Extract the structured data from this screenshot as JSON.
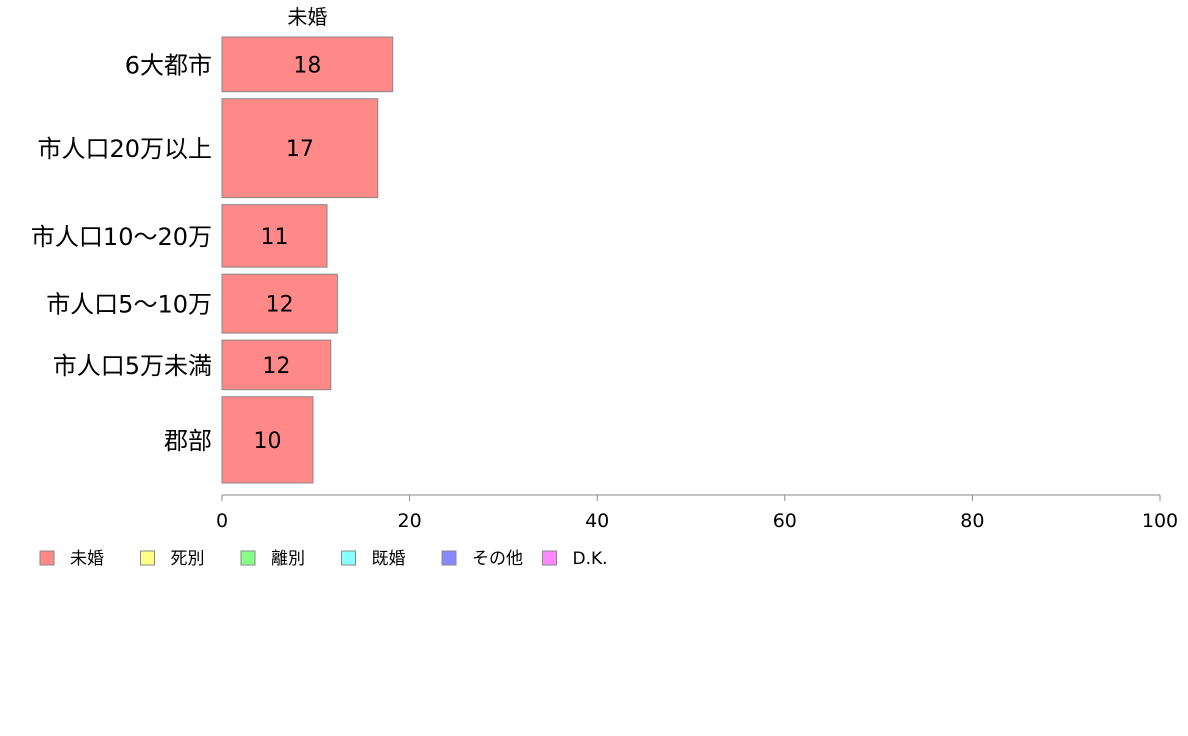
{
  "chart_data": {
    "type": "bar",
    "orientation": "horizontal",
    "stacked": true,
    "categories": [
      "6大都市",
      "市人口20万以上",
      "市人口10～20万",
      "市人口5～10万",
      "市人口5万未満",
      "郡部"
    ],
    "bar_weights": [
      18.2,
      32.9,
      20.8,
      19.6,
      16.5,
      28.7
    ],
    "series": [
      {
        "name": "未婚",
        "color": "#ff8888",
        "values": [
          18.2,
          16.6,
          11.2,
          12.3,
          11.6,
          9.7
        ],
        "labels": [
          "18",
          "17",
          "11",
          "12",
          "12",
          "10"
        ]
      },
      {
        "name": "死別",
        "color": "#ffff88",
        "values": [
          0,
          0,
          0,
          0,
          0,
          0
        ],
        "labels": [
          "",
          "",
          "",
          "",
          "",
          ""
        ]
      },
      {
        "name": "離別",
        "color": "#88ff88",
        "values": [
          0,
          0,
          0,
          0,
          0,
          0
        ],
        "labels": [
          "",
          "",
          "",
          "",
          "",
          ""
        ]
      },
      {
        "name": "既婚",
        "color": "#88ffff",
        "values": [
          0,
          0,
          0,
          0,
          0,
          0
        ],
        "labels": [
          "",
          "",
          "",
          "",
          "",
          ""
        ]
      },
      {
        "name": "その他",
        "color": "#8888ff",
        "values": [
          0,
          0,
          0,
          0,
          0,
          0
        ],
        "labels": [
          "",
          "",
          "",
          "",
          "",
          ""
        ]
      },
      {
        "name": "D.K.",
        "color": "#ff88ff",
        "values": [
          0,
          0,
          0,
          0,
          0,
          0
        ],
        "labels": [
          "",
          "",
          "",
          "",
          "",
          ""
        ]
      }
    ],
    "column_title": "未婚",
    "xlim": [
      0,
      100
    ],
    "xticks": [
      "0",
      "20",
      "40",
      "60",
      "80",
      "100"
    ],
    "grid": false,
    "legend_position": "bottom-left"
  }
}
